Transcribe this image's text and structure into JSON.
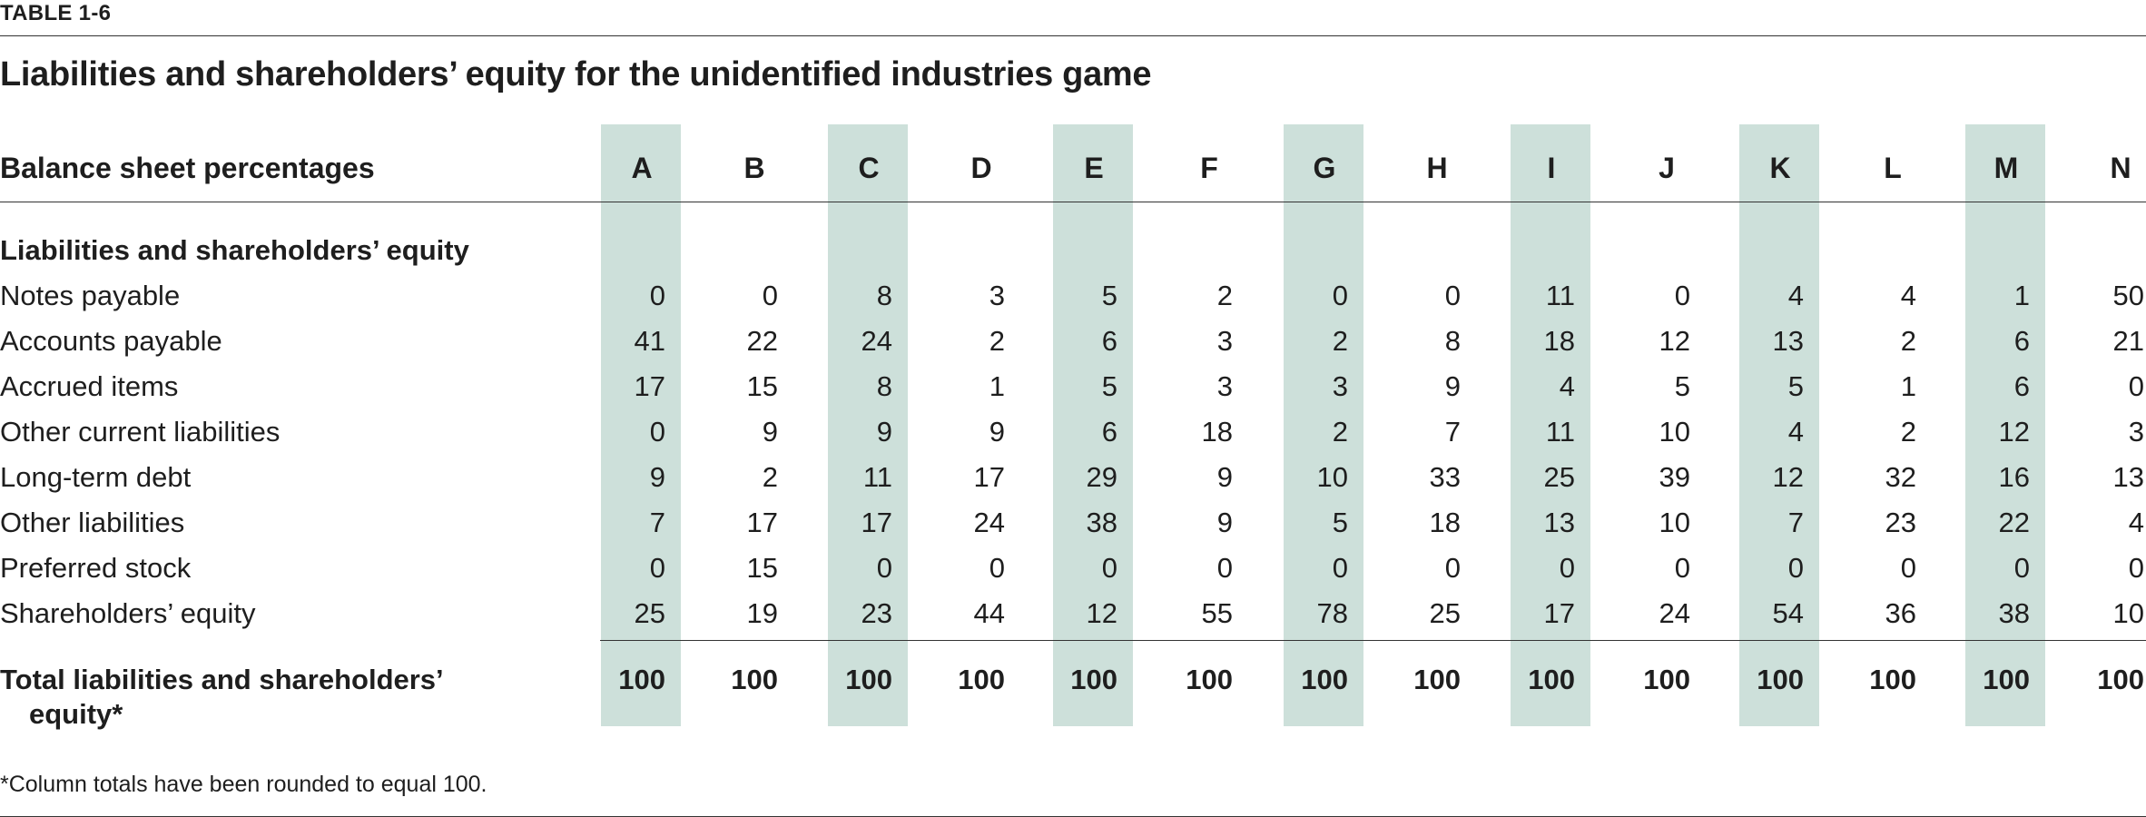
{
  "table": {
    "label": "TABLE 1-6",
    "title": "Liabilities and shareholders’ equity for the unidentified industries game",
    "header_left": "Balance sheet percentages",
    "columns": [
      "A",
      "B",
      "C",
      "D",
      "E",
      "F",
      "G",
      "H",
      "I",
      "J",
      "K",
      "L",
      "M",
      "N"
    ],
    "section_label": "Liabilities and shareholders’ equity",
    "rows": [
      {
        "label": "Notes payable",
        "values": [
          "0",
          "0",
          "8",
          "3",
          "5",
          "2",
          "0",
          "0",
          "11",
          "0",
          "4",
          "4",
          "1",
          "50"
        ]
      },
      {
        "label": "Accounts payable",
        "values": [
          "41",
          "22",
          "24",
          "2",
          "6",
          "3",
          "2",
          "8",
          "18",
          "12",
          "13",
          "2",
          "6",
          "21"
        ]
      },
      {
        "label": "Accrued items",
        "values": [
          "17",
          "15",
          "8",
          "1",
          "5",
          "3",
          "3",
          "9",
          "4",
          "5",
          "5",
          "1",
          "6",
          "0"
        ]
      },
      {
        "label": "Other current liabilities",
        "values": [
          "0",
          "9",
          "9",
          "9",
          "6",
          "18",
          "2",
          "7",
          "11",
          "10",
          "4",
          "2",
          "12",
          "3"
        ]
      },
      {
        "label": "Long-term debt",
        "values": [
          "9",
          "2",
          "11",
          "17",
          "29",
          "9",
          "10",
          "33",
          "25",
          "39",
          "12",
          "32",
          "16",
          "13"
        ]
      },
      {
        "label": "Other liabilities",
        "values": [
          "7",
          "17",
          "17",
          "24",
          "38",
          "9",
          "5",
          "18",
          "13",
          "10",
          "7",
          "23",
          "22",
          "4"
        ]
      },
      {
        "label": "Preferred stock",
        "values": [
          "0",
          "15",
          "0",
          "0",
          "0",
          "0",
          "0",
          "0",
          "0",
          "0",
          "0",
          "0",
          "0",
          "0"
        ]
      },
      {
        "label": "Shareholders’ equity",
        "values": [
          "25",
          "19",
          "23",
          "44",
          "12",
          "55",
          "78",
          "25",
          "17",
          "24",
          "54",
          "36",
          "38",
          "10"
        ]
      }
    ],
    "total": {
      "label_line1": "Total liabilities and shareholders’",
      "label_line2": "equity*",
      "values": [
        "100",
        "100",
        "100",
        "100",
        "100",
        "100",
        "100",
        "100",
        "100",
        "100",
        "100",
        "100",
        "100",
        "100"
      ]
    },
    "footnote": "*Column totals have been rounded to equal 100.",
    "shade_color": "#cde0da"
  }
}
